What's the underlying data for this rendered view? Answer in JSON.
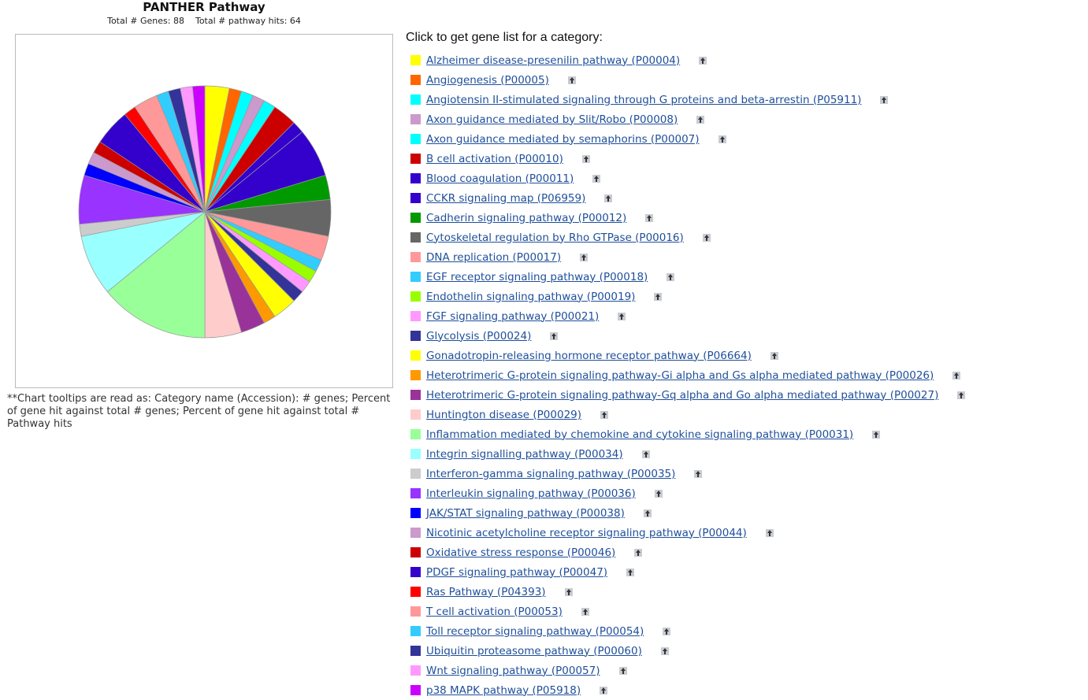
{
  "header": {
    "title": "PANTHER Pathway",
    "total_genes": "Total # Genes: 88",
    "total_hits": "Total # pathway hits: 64"
  },
  "note": "**Chart tooltips are read as: Category name (Accession): # genes; Percent of gene hit against total # genes; Percent of gene hit against total # Pathway hits",
  "list_heading": "Click to get gene list for a category:",
  "icon": "pathway-diagram-icon",
  "chart_data": {
    "type": "pie",
    "total_genes": 88,
    "total_hits": 64,
    "categories": [
      {
        "label": "Alzheimer disease-presenilin pathway (P00004)",
        "value": 2,
        "color": "#ffff00"
      },
      {
        "label": "Angiogenesis (P00005)",
        "value": 1,
        "color": "#ff6600"
      },
      {
        "label": "Angiotensin II-stimulated signaling through G proteins and beta-arrestin (P05911)",
        "value": 1,
        "color": "#00ffff"
      },
      {
        "label": "Axon guidance mediated by Slit/Robo (P00008)",
        "value": 1,
        "color": "#cc99cc"
      },
      {
        "label": "Axon guidance mediated by semaphorins (P00007)",
        "value": 1,
        "color": "#00ffff"
      },
      {
        "label": "B cell activation (P00010)",
        "value": 2,
        "color": "#cc0000"
      },
      {
        "label": "Blood coagulation (P00011)",
        "value": 1,
        "color": "#3300cc"
      },
      {
        "label": "CCKR signaling map (P06959)",
        "value": 4,
        "color": "#3300cc"
      },
      {
        "label": "Cadherin signaling pathway (P00012)",
        "value": 2,
        "color": "#009900"
      },
      {
        "label": "Cytoskeletal regulation by Rho GTPase (P00016)",
        "value": 3,
        "color": "#666666"
      },
      {
        "label": "DNA replication (P00017)",
        "value": 2,
        "color": "#ff9999"
      },
      {
        "label": "EGF receptor signaling pathway (P00018)",
        "value": 1,
        "color": "#33ccff"
      },
      {
        "label": "Endothelin signaling pathway (P00019)",
        "value": 1,
        "color": "#99ff00"
      },
      {
        "label": "FGF signaling pathway (P00021)",
        "value": 1,
        "color": "#ff99ff"
      },
      {
        "label": "Glycolysis (P00024)",
        "value": 1,
        "color": "#333399"
      },
      {
        "label": "Gonadotropin-releasing hormone receptor pathway (P06664)",
        "value": 2,
        "color": "#ffff00"
      },
      {
        "label": "Heterotrimeric G-protein signaling pathway-Gi alpha and Gs alpha mediated pathway (P00026)",
        "value": 1,
        "color": "#ff9900"
      },
      {
        "label": "Heterotrimeric G-protein signaling pathway-Gq alpha and Go alpha mediated pathway (P00027)",
        "value": 2,
        "color": "#993399"
      },
      {
        "label": "Huntington disease (P00029)",
        "value": 3,
        "color": "#ffcccc"
      },
      {
        "label": "Inflammation mediated by chemokine and cytokine signaling pathway (P00031)",
        "value": 9,
        "color": "#99ff99"
      },
      {
        "label": "Integrin signalling pathway (P00034)",
        "value": 5,
        "color": "#99ffff"
      },
      {
        "label": "Interferon-gamma signaling pathway (P00035)",
        "value": 1,
        "color": "#cccccc"
      },
      {
        "label": "Interleukin signaling pathway (P00036)",
        "value": 4,
        "color": "#9933ff"
      },
      {
        "label": "JAK/STAT signaling pathway (P00038)",
        "value": 1,
        "color": "#0000ff"
      },
      {
        "label": "Nicotinic acetylcholine receptor signaling pathway (P00044)",
        "value": 1,
        "color": "#cc99cc"
      },
      {
        "label": "Oxidative stress response (P00046)",
        "value": 1,
        "color": "#cc0000"
      },
      {
        "label": "PDGF signaling pathway (P00047)",
        "value": 3,
        "color": "#3300cc"
      },
      {
        "label": "Ras Pathway (P04393)",
        "value": 1,
        "color": "#ff0000"
      },
      {
        "label": "T cell activation (P00053)",
        "value": 2,
        "color": "#ff9999"
      },
      {
        "label": "Toll receptor signaling pathway (P00054)",
        "value": 1,
        "color": "#33ccff"
      },
      {
        "label": "Ubiquitin proteasome pathway (P00060)",
        "value": 1,
        "color": "#333399"
      },
      {
        "label": "Wnt signaling pathway (P00057)",
        "value": 1,
        "color": "#ff99ff"
      },
      {
        "label": "p38 MAPK pathway (P05918)",
        "value": 1,
        "color": "#cc00ff"
      }
    ]
  }
}
